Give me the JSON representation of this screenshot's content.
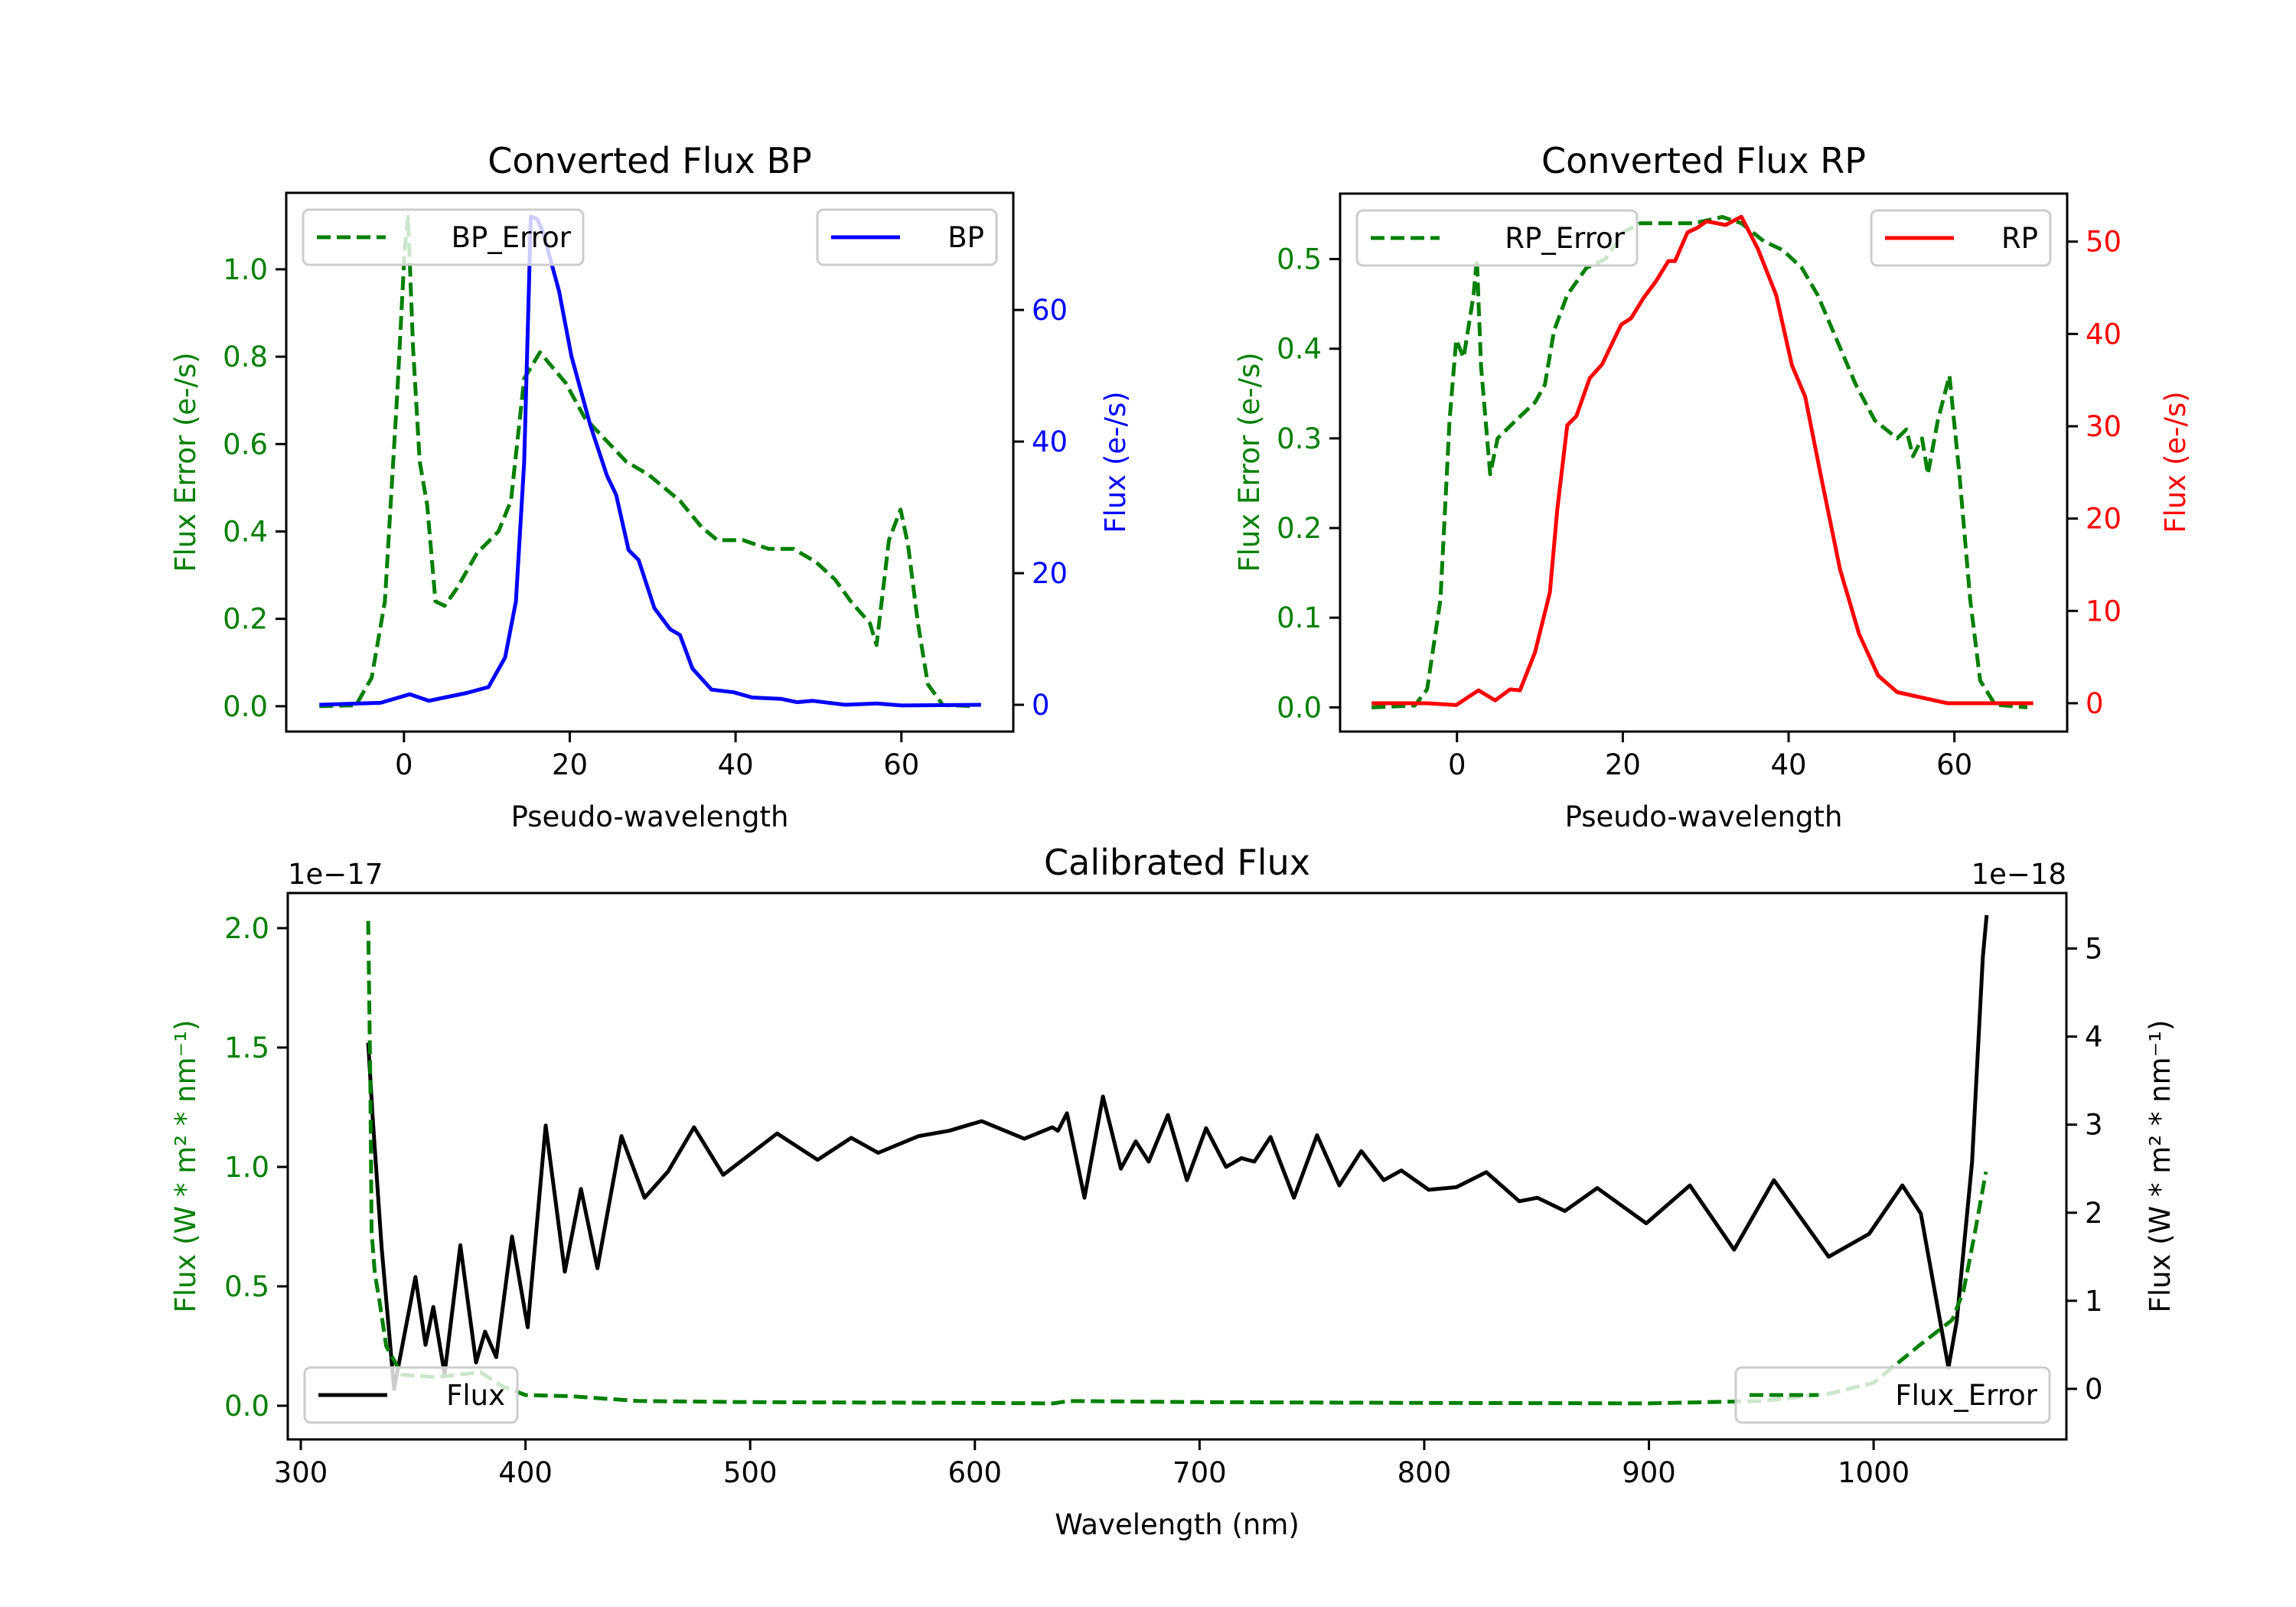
{
  "chart_data": [
    {
      "id": "bp",
      "type": "line",
      "title": "Converted Flux BP",
      "xlabel": "Pseudo-wavelength",
      "ylabel_left": "Flux Error (e-/s)",
      "ylabel_right": "Flux (e-/s)",
      "xlim": [
        -14.2,
        73.5
      ],
      "ylim_left": [
        -0.058,
        1.175
      ],
      "ylim_right": [
        -4.07,
        77.8
      ],
      "xticks": [
        0,
        20,
        40,
        60
      ],
      "yticks_left": [
        0.0,
        0.2,
        0.4,
        0.6,
        0.8,
        1.0
      ],
      "yticks_left_labels": [
        "0.0",
        "0.2",
        "0.4",
        "0.6",
        "0.8",
        "1.0"
      ],
      "yticks_right": [
        0,
        20,
        40,
        60
      ],
      "left_axis_color": "#008000",
      "right_axis_color": "#0000ff",
      "grid": false,
      "series": [
        {
          "name": "BP_Error",
          "axis": "left",
          "color": "#008000",
          "style": "dashed",
          "legend": "top-left",
          "x": [
            -10.2,
            -5.8,
            -3.9,
            -2.3,
            -0.8,
            0.1,
            0.5,
            1.1,
            1.9,
            2.8,
            3.8,
            4.9,
            6.4,
            8.8,
            11.4,
            12.9,
            14.5,
            16.4,
            19.5,
            21.8,
            24.8,
            26.8,
            29.5,
            33.3,
            35.9,
            37.8,
            40.9,
            44,
            47,
            49.7,
            52,
            53.9,
            56.2,
            57,
            58.5,
            59.9,
            60.8,
            62,
            63.2,
            65,
            68.9
          ],
          "y": [
            0,
            0.002,
            0.065,
            0.24,
            0.72,
            1.05,
            1.12,
            0.82,
            0.56,
            0.46,
            0.24,
            0.23,
            0.27,
            0.35,
            0.4,
            0.47,
            0.75,
            0.81,
            0.74,
            0.66,
            0.6,
            0.56,
            0.53,
            0.47,
            0.41,
            0.38,
            0.38,
            0.36,
            0.36,
            0.33,
            0.29,
            0.24,
            0.19,
            0.14,
            0.38,
            0.45,
            0.37,
            0.19,
            0.05,
            0.003,
            0
          ]
        },
        {
          "name": "BP",
          "axis": "right",
          "color": "#0000ff",
          "style": "solid",
          "legend": "top-right",
          "x": [
            -10.2,
            -2.8,
            0.7,
            3,
            4.9,
            7.6,
            10.2,
            12.2,
            13.5,
            14.5,
            15.3,
            16.1,
            16.8,
            18.7,
            20.2,
            22.5,
            24.5,
            25.6,
            27.1,
            28.3,
            30.2,
            32.1,
            33.3,
            34.8,
            37.1,
            39.8,
            42,
            45.5,
            47.4,
            49.3,
            53.2,
            57,
            60,
            69.6
          ],
          "y": [
            0,
            0.3,
            1.6,
            0.6,
            1.1,
            1.8,
            2.7,
            7.2,
            15.7,
            36.9,
            74.2,
            73.8,
            71.7,
            62.9,
            53,
            42.4,
            34.8,
            31.9,
            23.5,
            22,
            14.7,
            11.5,
            10.6,
            5.5,
            2.3,
            1.9,
            1.1,
            0.9,
            0.4,
            0.6,
            0,
            0.2,
            -0.1,
            0
          ]
        }
      ]
    },
    {
      "id": "rp",
      "type": "line",
      "title": "Converted Flux RP",
      "xlabel": "Pseudo-wavelength",
      "ylabel_left": "Flux Error (e-/s)",
      "ylabel_right": "Flux (e-/s)",
      "xlim": [
        -14.1,
        73.6
      ],
      "ylim_left": [
        -0.027,
        0.573
      ],
      "ylim_right": [
        -3.07,
        55.2
      ],
      "xticks": [
        0,
        20,
        40,
        60
      ],
      "yticks_left": [
        0.0,
        0.1,
        0.2,
        0.3,
        0.4,
        0.5
      ],
      "yticks_left_labels": [
        "0.0",
        "0.1",
        "0.2",
        "0.3",
        "0.4",
        "0.5"
      ],
      "yticks_right": [
        0,
        10,
        20,
        30,
        40,
        50
      ],
      "left_axis_color": "#008000",
      "right_axis_color": "#ff0000",
      "grid": false,
      "series": [
        {
          "name": "RP_Error",
          "axis": "left",
          "color": "#008000",
          "style": "dashed",
          "legend": "top-left",
          "x": [
            -10.3,
            -5.1,
            -3.6,
            -2,
            -0.9,
            -0.1,
            0.8,
            2,
            2.4,
            2.9,
            4,
            4.9,
            7.1,
            9.4,
            10.6,
            11.7,
            13.3,
            15.6,
            17.9,
            20.1,
            22.1,
            25.5,
            28.6,
            32,
            34.3,
            37,
            39.3,
            41.6,
            43.5,
            45.8,
            48.1,
            50.4,
            53.1,
            54.2,
            55,
            56.1,
            56.8,
            58,
            59.4,
            60.6,
            61.9,
            63.1,
            64.9,
            68.8
          ],
          "y": [
            0,
            0.002,
            0.02,
            0.12,
            0.32,
            0.41,
            0.39,
            0.46,
            0.5,
            0.38,
            0.26,
            0.3,
            0.32,
            0.34,
            0.36,
            0.42,
            0.46,
            0.49,
            0.5,
            0.53,
            0.54,
            0.54,
            0.54,
            0.547,
            0.54,
            0.52,
            0.51,
            0.49,
            0.46,
            0.41,
            0.36,
            0.32,
            0.3,
            0.31,
            0.28,
            0.3,
            0.26,
            0.32,
            0.37,
            0.26,
            0.12,
            0.03,
            0.003,
            0
          ]
        },
        {
          "name": "RP",
          "axis": "right",
          "color": "#ff0000",
          "style": "solid",
          "legend": "top-right",
          "x": [
            -10.3,
            -3.6,
            -0.1,
            2.6,
            4.6,
            6.4,
            7.6,
            9.4,
            11.2,
            12.1,
            13.3,
            14.4,
            16,
            17.5,
            19.8,
            21,
            22.5,
            24,
            25.5,
            26.3,
            27.8,
            29,
            30.1,
            32.4,
            34.3,
            36.3,
            38.5,
            40.4,
            42,
            43.9,
            46.2,
            48.5,
            50.8,
            53.1,
            56.1,
            59.2,
            69.5
          ],
          "y": [
            0,
            0,
            -0.2,
            1.4,
            0.3,
            1.5,
            1.4,
            5.5,
            12,
            21,
            30.1,
            31.1,
            35.2,
            36.7,
            41,
            41.7,
            43.9,
            45.7,
            47.9,
            47.9,
            51,
            51.5,
            52.2,
            51.8,
            52.7,
            49.2,
            44.2,
            36.6,
            33.2,
            24.6,
            14.5,
            7.5,
            3,
            1.2,
            0.6,
            0,
            0
          ]
        }
      ]
    },
    {
      "id": "calibrated",
      "type": "line",
      "title": "Calibrated Flux",
      "xlabel": "Wavelength (nm)",
      "ylabel_left": "Flux (W * m² * nm⁻¹)",
      "ylabel_right": "Flux (W * m² * nm⁻¹)",
      "offset_left": "1e−17",
      "offset_right": "1e−18",
      "xlim": [
        294.2,
        1085.8
      ],
      "ylim_left": [
        -0.141,
        2.147
      ],
      "ylim_right": [
        -0.574,
        5.63
      ],
      "xticks": [
        300,
        400,
        500,
        600,
        700,
        800,
        900,
        1000
      ],
      "yticks_left": [
        0.0,
        0.5,
        1.0,
        1.5,
        2.0
      ],
      "yticks_left_labels": [
        "0.0",
        "0.5",
        "1.0",
        "1.5",
        "2.0"
      ],
      "yticks_right": [
        0,
        1,
        2,
        3,
        4,
        5
      ],
      "left_axis_color": "#008000",
      "right_axis_color": "#000000",
      "grid": false,
      "series": [
        {
          "name": "Flux",
          "axis": "right",
          "color": "#000000",
          "style": "solid",
          "legend": "lower-left",
          "x": [
            330,
            332,
            336,
            341.5,
            351,
            355.5,
            359,
            364,
            371,
            378,
            382,
            387,
            394,
            401,
            409,
            417.5,
            424.7,
            432,
            442.7,
            453,
            463.5,
            475,
            488,
            512,
            530,
            545,
            557,
            575,
            588.5,
            603,
            622,
            634.5,
            637,
            641,
            648.8,
            657,
            665,
            671.6,
            677.4,
            685.9,
            694.4,
            702.9,
            711.8,
            718.6,
            724.4,
            731.6,
            742,
            752.3,
            762.2,
            772,
            782,
            789.8,
            802,
            814.3,
            827.6,
            842.3,
            850.4,
            862.6,
            877,
            898.8,
            918.2,
            937.9,
            955.6,
            980,
            998,
            1012.8,
            1021,
            1033.3,
            1037,
            1043.8,
            1048.6,
            1050.3
          ],
          "y": [
            3.93,
            3.07,
            1.6,
            0.0,
            1.27,
            0.5,
            0.93,
            0.17,
            1.63,
            0.3,
            0.65,
            0.36,
            1.73,
            0.7,
            2.99,
            1.33,
            2.27,
            1.37,
            2.87,
            2.17,
            2.47,
            2.97,
            2.43,
            2.9,
            2.6,
            2.85,
            2.68,
            2.87,
            2.93,
            3.04,
            2.84,
            2.97,
            2.93,
            3.13,
            2.17,
            3.32,
            2.5,
            2.81,
            2.58,
            3.11,
            2.37,
            2.96,
            2.52,
            2.62,
            2.58,
            2.86,
            2.17,
            2.88,
            2.31,
            2.7,
            2.37,
            2.48,
            2.26,
            2.29,
            2.46,
            2.13,
            2.17,
            2.02,
            2.28,
            1.88,
            2.31,
            1.58,
            2.37,
            1.5,
            1.76,
            2.31,
            1.99,
            0.24,
            0.77,
            2.57,
            4.9,
            5.38
          ]
        },
        {
          "name": "Flux_Error",
          "axis": "left",
          "color": "#008000",
          "style": "dashed",
          "legend": "lower-right",
          "x": [
            330,
            331,
            331.5,
            333,
            335,
            338,
            345,
            360,
            380,
            390,
            400,
            420,
            450,
            500,
            600,
            635,
            642,
            700,
            800,
            900,
            950,
            980,
            1000,
            1020,
            1035,
            1040,
            1045,
            1050
          ],
          "y": [
            2.03,
            1.32,
            0.73,
            0.55,
            0.44,
            0.25,
            0.13,
            0.12,
            0.14,
            0.08,
            0.045,
            0.04,
            0.02,
            0.015,
            0.012,
            0.01,
            0.02,
            0.015,
            0.012,
            0.01,
            0.02,
            0.05,
            0.096,
            0.25,
            0.36,
            0.48,
            0.72,
            0.98
          ]
        }
      ]
    }
  ]
}
